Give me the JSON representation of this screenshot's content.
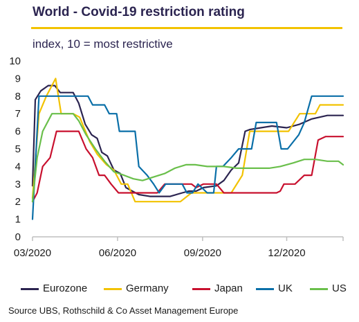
{
  "title": "World - Covid-19 restriction rating",
  "subtitle": "index, 10 = most restrictive",
  "source": "Source UBS, Rothschild & Co Asset Management Europe",
  "colors": {
    "eurozone": "#2b2450",
    "germany": "#f2c200",
    "japan": "#c8102e",
    "uk": "#0a6fa8",
    "us": "#6abf4b",
    "accent_rule": "#f2c200"
  },
  "chart_data": {
    "type": "line",
    "title": "World - Covid-19 restriction rating",
    "ylabel": "index, 10 = most restrictive",
    "ylim": [
      0,
      10
    ],
    "yticks": [
      "0",
      "1",
      "2",
      "3",
      "4",
      "5",
      "6",
      "7",
      "8",
      "9",
      "10"
    ],
    "xlim": [
      "2020-03-01",
      "2021-01-31"
    ],
    "xticks": [
      {
        "label": "03/2020",
        "date": "2020-03-01"
      },
      {
        "label": "06/2020",
        "date": "2020-06-01"
      },
      {
        "label": "09/2020",
        "date": "2020-09-01"
      },
      {
        "label": "12/2020",
        "date": "2020-12-01"
      }
    ],
    "legend_position": "bottom",
    "grid": false,
    "series": [
      {
        "name": "Eurozone",
        "color": "#2b2450",
        "points": [
          [
            "2020-03-01",
            2.9
          ],
          [
            "2020-03-04",
            7.8
          ],
          [
            "2020-03-10",
            8.3
          ],
          [
            "2020-03-18",
            8.6
          ],
          [
            "2020-03-25",
            8.6
          ],
          [
            "2020-03-31",
            8.2
          ],
          [
            "2020-04-14",
            8.2
          ],
          [
            "2020-04-20",
            7.6
          ],
          [
            "2020-04-27",
            6.4
          ],
          [
            "2020-05-04",
            5.8
          ],
          [
            "2020-05-10",
            5.6
          ],
          [
            "2020-05-15",
            4.8
          ],
          [
            "2020-05-21",
            4.6
          ],
          [
            "2020-05-28",
            3.8
          ],
          [
            "2020-06-04",
            3.6
          ],
          [
            "2020-06-10",
            2.8
          ],
          [
            "2020-06-17",
            2.6
          ],
          [
            "2020-06-24",
            2.4
          ],
          [
            "2020-07-06",
            2.3
          ],
          [
            "2020-07-28",
            2.3
          ],
          [
            "2020-08-10",
            2.5
          ],
          [
            "2020-08-17",
            2.6
          ],
          [
            "2020-08-25",
            2.6
          ],
          [
            "2020-09-02",
            2.8
          ],
          [
            "2020-09-16",
            2.9
          ],
          [
            "2020-09-24",
            3.2
          ],
          [
            "2020-10-02",
            3.8
          ],
          [
            "2020-10-10",
            4.2
          ],
          [
            "2020-10-17",
            6.0
          ],
          [
            "2020-10-22",
            6.1
          ],
          [
            "2020-11-03",
            6.2
          ],
          [
            "2020-11-15",
            6.3
          ],
          [
            "2020-12-01",
            6.2
          ],
          [
            "2020-12-15",
            6.4
          ],
          [
            "2020-12-28",
            6.7
          ],
          [
            "2021-01-14",
            6.9
          ],
          [
            "2021-01-31",
            6.9
          ]
        ]
      },
      {
        "name": "Germany",
        "color": "#f2c200",
        "points": [
          [
            "2020-03-01",
            2.2
          ],
          [
            "2020-03-08",
            7.0
          ],
          [
            "2020-03-16",
            8.0
          ],
          [
            "2020-03-26",
            9.0
          ],
          [
            "2020-04-01",
            7.0
          ],
          [
            "2020-04-14",
            7.0
          ],
          [
            "2020-04-21",
            6.8
          ],
          [
            "2020-05-02",
            5.4
          ],
          [
            "2020-05-10",
            4.7
          ],
          [
            "2020-05-20",
            4.1
          ],
          [
            "2020-05-28",
            3.8
          ],
          [
            "2020-06-05",
            3.0
          ],
          [
            "2020-06-12",
            3.0
          ],
          [
            "2020-06-20",
            2.0
          ],
          [
            "2020-07-01",
            2.0
          ],
          [
            "2020-08-08",
            2.0
          ],
          [
            "2020-08-20",
            2.5
          ],
          [
            "2020-09-15",
            2.5
          ],
          [
            "2020-10-02",
            2.5
          ],
          [
            "2020-10-14",
            3.5
          ],
          [
            "2020-10-22",
            6.0
          ],
          [
            "2020-12-03",
            6.0
          ],
          [
            "2020-12-15",
            7.0
          ],
          [
            "2021-01-01",
            7.0
          ],
          [
            "2021-01-06",
            7.5
          ],
          [
            "2021-01-31",
            7.5
          ]
        ]
      },
      {
        "name": "Japan",
        "color": "#c8102e",
        "points": [
          [
            "2020-03-01",
            2.0
          ],
          [
            "2020-03-06",
            2.5
          ],
          [
            "2020-03-12",
            4.0
          ],
          [
            "2020-03-20",
            4.5
          ],
          [
            "2020-03-27",
            6.0
          ],
          [
            "2020-04-20",
            6.0
          ],
          [
            "2020-04-28",
            5.0
          ],
          [
            "2020-05-05",
            4.5
          ],
          [
            "2020-05-12",
            3.5
          ],
          [
            "2020-05-18",
            3.5
          ],
          [
            "2020-05-25",
            3.0
          ],
          [
            "2020-06-02",
            2.5
          ],
          [
            "2020-07-14",
            2.5
          ],
          [
            "2020-07-22",
            3.0
          ],
          [
            "2020-08-20",
            3.0
          ],
          [
            "2020-08-25",
            2.8
          ],
          [
            "2020-09-02",
            3.0
          ],
          [
            "2020-09-16",
            3.0
          ],
          [
            "2020-09-24",
            2.5
          ],
          [
            "2020-11-20",
            2.5
          ],
          [
            "2020-11-24",
            2.6
          ],
          [
            "2020-11-28",
            3.0
          ],
          [
            "2020-12-10",
            3.0
          ],
          [
            "2020-12-20",
            3.5
          ],
          [
            "2020-12-28",
            3.5
          ],
          [
            "2021-01-04",
            5.5
          ],
          [
            "2021-01-12",
            5.7
          ],
          [
            "2021-01-31",
            5.7
          ]
        ]
      },
      {
        "name": "UK",
        "color": "#0a6fa8",
        "points": [
          [
            "2020-03-01",
            1.0
          ],
          [
            "2020-03-05",
            5.0
          ],
          [
            "2020-03-08",
            8.0
          ],
          [
            "2020-04-30",
            8.0
          ],
          [
            "2020-05-05",
            7.5
          ],
          [
            "2020-05-18",
            7.5
          ],
          [
            "2020-05-23",
            7.0
          ],
          [
            "2020-05-31",
            7.0
          ],
          [
            "2020-06-03",
            6.0
          ],
          [
            "2020-06-20",
            6.0
          ],
          [
            "2020-06-24",
            4.0
          ],
          [
            "2020-07-03",
            3.5
          ],
          [
            "2020-07-10",
            3.0
          ],
          [
            "2020-07-16",
            2.5
          ],
          [
            "2020-07-23",
            3.0
          ],
          [
            "2020-08-10",
            3.0
          ],
          [
            "2020-08-15",
            2.5
          ],
          [
            "2020-08-21",
            2.5
          ],
          [
            "2020-08-27",
            3.0
          ],
          [
            "2020-09-06",
            2.5
          ],
          [
            "2020-09-13",
            2.5
          ],
          [
            "2020-09-16",
            4.0
          ],
          [
            "2020-09-23",
            4.0
          ],
          [
            "2020-10-02",
            4.5
          ],
          [
            "2020-10-10",
            5.0
          ],
          [
            "2020-10-24",
            5.0
          ],
          [
            "2020-10-29",
            6.5
          ],
          [
            "2020-11-20",
            6.5
          ],
          [
            "2020-11-25",
            5.0
          ],
          [
            "2020-12-02",
            5.0
          ],
          [
            "2020-12-14",
            5.8
          ],
          [
            "2020-12-20",
            6.5
          ],
          [
            "2020-12-28",
            8.0
          ],
          [
            "2021-01-31",
            8.0
          ]
        ]
      },
      {
        "name": "US",
        "color": "#6abf4b",
        "points": [
          [
            "2020-03-01",
            2.0
          ],
          [
            "2020-03-06",
            4.5
          ],
          [
            "2020-03-12",
            6.0
          ],
          [
            "2020-03-22",
            7.0
          ],
          [
            "2020-04-14",
            7.0
          ],
          [
            "2020-04-20",
            6.6
          ],
          [
            "2020-04-28",
            5.8
          ],
          [
            "2020-05-08",
            5.0
          ],
          [
            "2020-05-18",
            4.3
          ],
          [
            "2020-05-28",
            3.7
          ],
          [
            "2020-06-08",
            3.5
          ],
          [
            "2020-06-18",
            3.3
          ],
          [
            "2020-06-28",
            3.2
          ],
          [
            "2020-07-10",
            3.4
          ],
          [
            "2020-07-22",
            3.6
          ],
          [
            "2020-08-02",
            3.9
          ],
          [
            "2020-08-14",
            4.1
          ],
          [
            "2020-08-24",
            4.1
          ],
          [
            "2020-09-06",
            4.0
          ],
          [
            "2020-09-24",
            4.0
          ],
          [
            "2020-10-08",
            3.9
          ],
          [
            "2020-10-28",
            3.9
          ],
          [
            "2020-11-12",
            3.9
          ],
          [
            "2020-11-24",
            4.0
          ],
          [
            "2020-12-08",
            4.2
          ],
          [
            "2020-12-20",
            4.4
          ],
          [
            "2021-01-01",
            4.4
          ],
          [
            "2021-01-14",
            4.3
          ],
          [
            "2021-01-26",
            4.3
          ],
          [
            "2021-01-31",
            4.1
          ]
        ]
      }
    ]
  }
}
